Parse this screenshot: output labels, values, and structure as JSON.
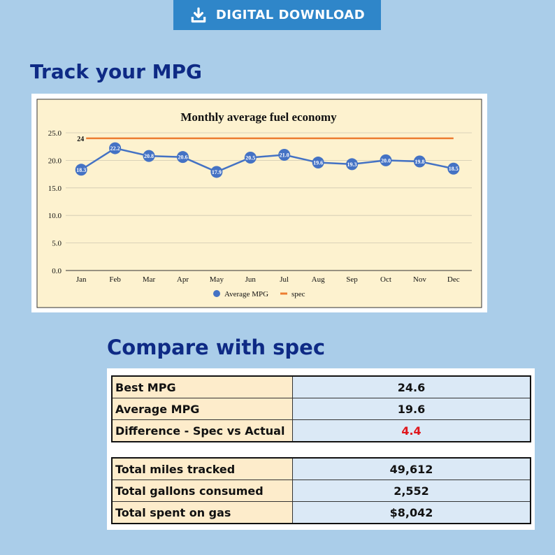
{
  "badge": {
    "label": "DIGITAL DOWNLOAD",
    "icon": "download-icon"
  },
  "section1_title": "Track your MPG",
  "section2_title": "Compare with spec",
  "chart_data": {
    "type": "line",
    "title": "Monthly average fuel economy",
    "categories": [
      "Jan",
      "Feb",
      "Mar",
      "Apr",
      "May",
      "Jun",
      "Jul",
      "Aug",
      "Sep",
      "Oct",
      "Nov",
      "Dec"
    ],
    "series": [
      {
        "name": "Average MPG",
        "values": [
          18.3,
          22.2,
          20.8,
          20.6,
          17.9,
          20.5,
          21.0,
          19.6,
          19.3,
          20.0,
          19.8,
          18.5
        ],
        "color": "#4472c4"
      },
      {
        "name": "spec",
        "values": [
          24,
          24,
          24,
          24,
          24,
          24,
          24,
          24,
          24,
          24,
          24,
          24
        ],
        "color": "#ed7d31"
      }
    ],
    "spec_label": "24",
    "y_ticks": [
      "0.0",
      "5.0",
      "10.0",
      "15.0",
      "20.0",
      "25.0"
    ],
    "ylim": [
      0,
      25
    ],
    "grid": true,
    "legend": "bottom"
  },
  "stats_table": [
    {
      "label": "Best MPG",
      "value": "24.6"
    },
    {
      "label": "Average MPG",
      "value": "19.6"
    },
    {
      "label": "Difference - Spec vs Actual",
      "value": "4.4",
      "highlight": "#e0161c"
    }
  ],
  "totals_table": [
    {
      "label": "Total miles tracked",
      "value": "49,612"
    },
    {
      "label": "Total gallons consumed",
      "value": "2,552"
    },
    {
      "label": "Total spent on gas",
      "value": "$8,042"
    }
  ]
}
